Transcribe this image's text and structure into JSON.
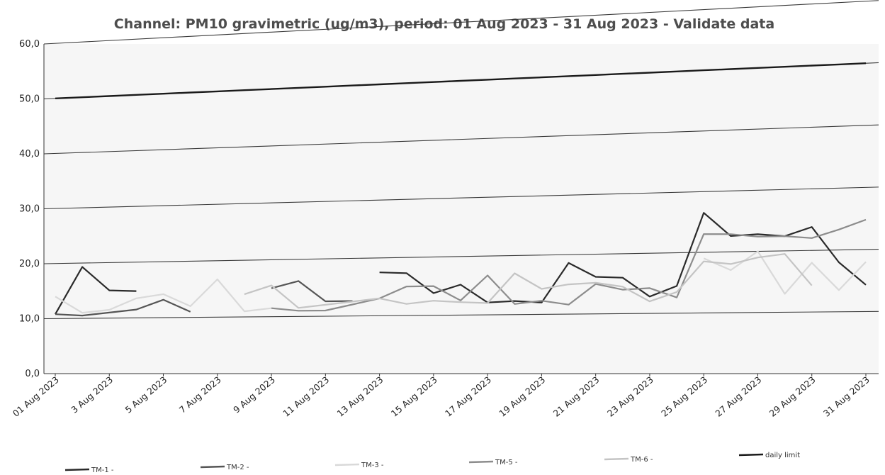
{
  "chart_data": {
    "type": "line",
    "title": "Channel: PM10 gravimetric (ug/m3), period: 01 Aug 2023 - 31 Aug 2023 - Validate data",
    "xlabel": "",
    "ylabel": "",
    "ylim": [
      0,
      60
    ],
    "yticks": [
      "0,0",
      "10,0",
      "20,0",
      "30,0",
      "40,0",
      "50,0",
      "60,0"
    ],
    "x_tick_labels": [
      "01 Aug 2023",
      "3 Aug 2023",
      "5 Aug 2023",
      "7 Aug 2023",
      "9 Aug 2023",
      "11 Aug 2023",
      "13 Aug 2023",
      "15 Aug 2023",
      "17 Aug 2023",
      "19 Aug 2023",
      "21 Aug 2023",
      "23 Aug 2023",
      "25 Aug 2023",
      "27 Aug 2023",
      "29 Aug 2023",
      "31 Aug 2023"
    ],
    "x": [
      "01 Aug 2023",
      "2 Aug 2023",
      "3 Aug 2023",
      "4 Aug 2023",
      "5 Aug 2023",
      "6 Aug 2023",
      "7 Aug 2023",
      "8 Aug 2023",
      "9 Aug 2023",
      "10 Aug 2023",
      "11 Aug 2023",
      "12 Aug 2023",
      "13 Aug 2023",
      "14 Aug 2023",
      "15 Aug 2023",
      "16 Aug 2023",
      "17 Aug 2023",
      "18 Aug 2023",
      "19 Aug 2023",
      "20 Aug 2023",
      "21 Aug 2023",
      "22 Aug 2023",
      "23 Aug 2023",
      "24 Aug 2023",
      "25 Aug 2023",
      "26 Aug 2023",
      "27 Aug 2023",
      "28 Aug 2023",
      "29 Aug 2023",
      "30 Aug 2023",
      "31 Aug 2023"
    ],
    "grid": true,
    "legend_position": "bottom",
    "series": [
      {
        "name": "TM-1 -",
        "color": "#2a2a2a",
        "values": [
          10.8,
          19.3,
          15.0,
          14.8,
          null,
          null,
          null,
          null,
          null,
          null,
          null,
          null,
          17.5,
          17.3,
          13.8,
          15.2,
          12.1,
          12.3,
          12.0,
          18.6,
          16.2,
          16.0,
          12.8,
          14.5,
          26.5,
          22.6,
          22.8,
          22.4,
          23.8,
          18.0,
          14.3
        ]
      },
      {
        "name": "TM-2 -",
        "color": "#555555",
        "values": [
          10.8,
          10.5,
          11.0,
          11.5,
          13.2,
          11.0,
          null,
          null,
          15.0,
          16.2,
          12.6,
          12.6,
          null,
          null,
          null,
          null,
          null,
          null,
          null,
          null,
          null,
          null,
          null,
          null,
          null,
          null,
          null,
          null,
          null,
          null,
          null
        ]
      },
      {
        "name": "TM-3 -",
        "color": "#d9d9d9",
        "values": [
          14.0,
          11.0,
          11.5,
          13.5,
          14.2,
          12.0,
          16.7,
          11.0,
          11.5,
          null,
          null,
          null,
          null,
          null,
          null,
          null,
          null,
          null,
          null,
          null,
          null,
          null,
          null,
          null,
          19.0,
          17.0,
          20.0,
          13.0,
          18.0,
          13.5,
          18.0
        ]
      },
      {
        "name": "TM-5 -",
        "color": "#8c8c8c",
        "values": [
          null,
          null,
          null,
          null,
          null,
          null,
          null,
          null,
          11.5,
          11.0,
          11.0,
          12.0,
          13.0,
          15.0,
          15.0,
          12.5,
          16.7,
          11.8,
          12.3,
          11.6,
          15.0,
          14.0,
          14.2,
          12.6,
          23.0,
          22.9,
          22.4,
          22.4,
          22.0,
          23.3,
          24.8
        ]
      },
      {
        "name": "TM-6 -",
        "color": "#c4c4c4",
        "values": [
          null,
          null,
          null,
          null,
          null,
          null,
          null,
          14.0,
          15.5,
          11.5,
          12.0,
          12.5,
          13.0,
          12.0,
          12.5,
          12.2,
          12.0,
          17.0,
          14.3,
          15.0,
          15.2,
          14.5,
          12.0,
          13.5,
          18.5,
          18.0,
          19.0,
          19.5,
          14.3,
          null,
          null
        ]
      },
      {
        "name": "daily limit",
        "color": "#1a1a1a",
        "values": [
          50,
          50,
          50,
          50,
          50,
          50,
          50,
          50,
          50,
          50,
          50,
          50,
          50,
          50,
          50,
          50,
          50,
          50,
          50,
          50,
          50,
          50,
          50,
          50,
          50,
          50,
          50,
          50,
          50,
          50,
          50
        ]
      }
    ]
  }
}
